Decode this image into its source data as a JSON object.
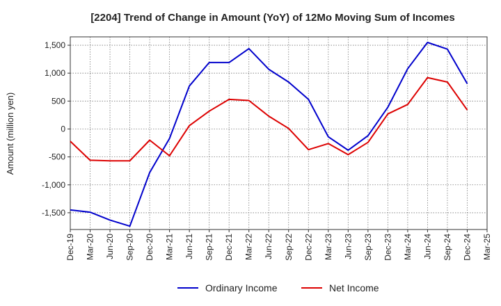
{
  "chart_data": {
    "type": "line",
    "title": "[2204]  Trend of Change in Amount (YoY) of 12Mo Moving Sum of Incomes",
    "xlabel": "",
    "ylabel": "Amount (million yen)",
    "ylim": [
      -1800,
      1650
    ],
    "yticks": [
      -1500,
      -1000,
      -500,
      0,
      500,
      1000,
      1500
    ],
    "ytick_labels": [
      "-1,500",
      "-1,000",
      "-500",
      "0",
      "500",
      "1,000",
      "1,500"
    ],
    "categories": [
      "Dec-19",
      "Mar-20",
      "Jun-20",
      "Sep-20",
      "Dec-20",
      "Mar-21",
      "Jun-21",
      "Sep-21",
      "Dec-21",
      "Mar-22",
      "Jun-22",
      "Sep-22",
      "Dec-22",
      "Mar-23",
      "Jun-23",
      "Sep-23",
      "Dec-23",
      "Mar-24",
      "Jun-24",
      "Sep-24",
      "Dec-24",
      "Mar-25"
    ],
    "grid": true,
    "legend_position": "bottom-center",
    "series": [
      {
        "name": "Ordinary Income",
        "color": "#0000cc",
        "values": [
          -1450,
          -1490,
          -1630,
          -1740,
          -780,
          -170,
          770,
          1190,
          1190,
          1440,
          1070,
          840,
          530,
          -140,
          -380,
          -120,
          390,
          1080,
          1550,
          1430,
          810,
          null
        ]
      },
      {
        "name": "Net Income",
        "color": "#dd0000",
        "values": [
          -220,
          -560,
          -570,
          -570,
          -200,
          -480,
          60,
          320,
          530,
          510,
          230,
          10,
          -370,
          -260,
          -460,
          -240,
          270,
          440,
          920,
          840,
          340,
          null
        ]
      }
    ]
  }
}
